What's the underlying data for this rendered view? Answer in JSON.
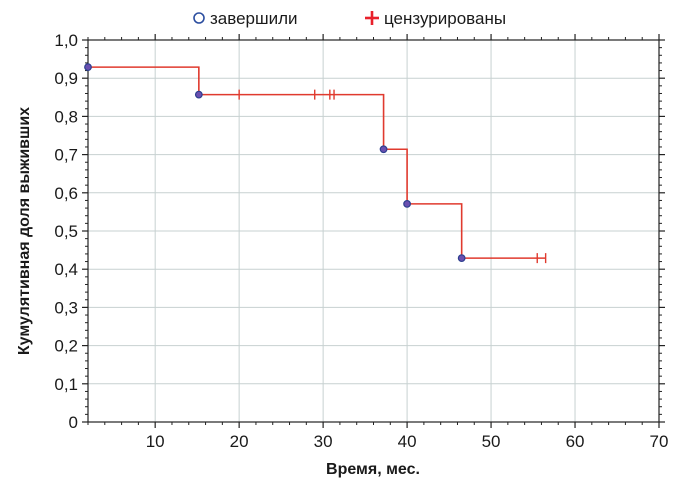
{
  "chart_data": {
    "type": "line",
    "title": "",
    "xlabel": "Время, мес.",
    "ylabel": "Кумулятивная доля выживших",
    "xlim": [
      2,
      70
    ],
    "ylim": [
      0,
      1
    ],
    "grid": true,
    "legend_position": "top-center",
    "x_ticks": [
      10,
      20,
      30,
      40,
      50,
      60,
      70
    ],
    "x_tick_labels": [
      "10",
      "20",
      "30",
      "40",
      "50",
      "60",
      "70"
    ],
    "y_ticks": [
      0,
      0.1,
      0.2,
      0.3,
      0.4,
      0.5,
      0.6,
      0.7,
      0.8,
      0.9,
      1.0
    ],
    "y_tick_labels": [
      "0",
      "0,1",
      "0,2",
      "0,3",
      "0,4",
      "0,5",
      "0,6",
      "0,7",
      "0,8",
      "0,9",
      "1,0"
    ],
    "legend": [
      {
        "label": "завершили",
        "marker": "circle",
        "color": "#2d4fa0"
      },
      {
        "label": "цензурированы",
        "marker": "plus",
        "color": "#e8212b"
      }
    ],
    "curve_color": "#e03a2e",
    "step_points": [
      {
        "x": 2,
        "y": 0.929
      },
      {
        "x": 15.2,
        "y": 0.857
      },
      {
        "x": 37.2,
        "y": 0.714
      },
      {
        "x": 40.0,
        "y": 0.571
      },
      {
        "x": 46.5,
        "y": 0.429
      },
      {
        "x": 56.5,
        "y": 0.429
      }
    ],
    "events": [
      {
        "x": 2,
        "y": 0.929
      },
      {
        "x": 15.2,
        "y": 0.857
      },
      {
        "x": 37.2,
        "y": 0.714
      },
      {
        "x": 40.0,
        "y": 0.571
      },
      {
        "x": 46.5,
        "y": 0.429
      }
    ],
    "censored": [
      {
        "x": 20.0,
        "y": 0.857
      },
      {
        "x": 29.0,
        "y": 0.857
      },
      {
        "x": 30.8,
        "y": 0.857
      },
      {
        "x": 31.3,
        "y": 0.857
      },
      {
        "x": 55.5,
        "y": 0.429
      },
      {
        "x": 56.5,
        "y": 0.429
      }
    ]
  }
}
